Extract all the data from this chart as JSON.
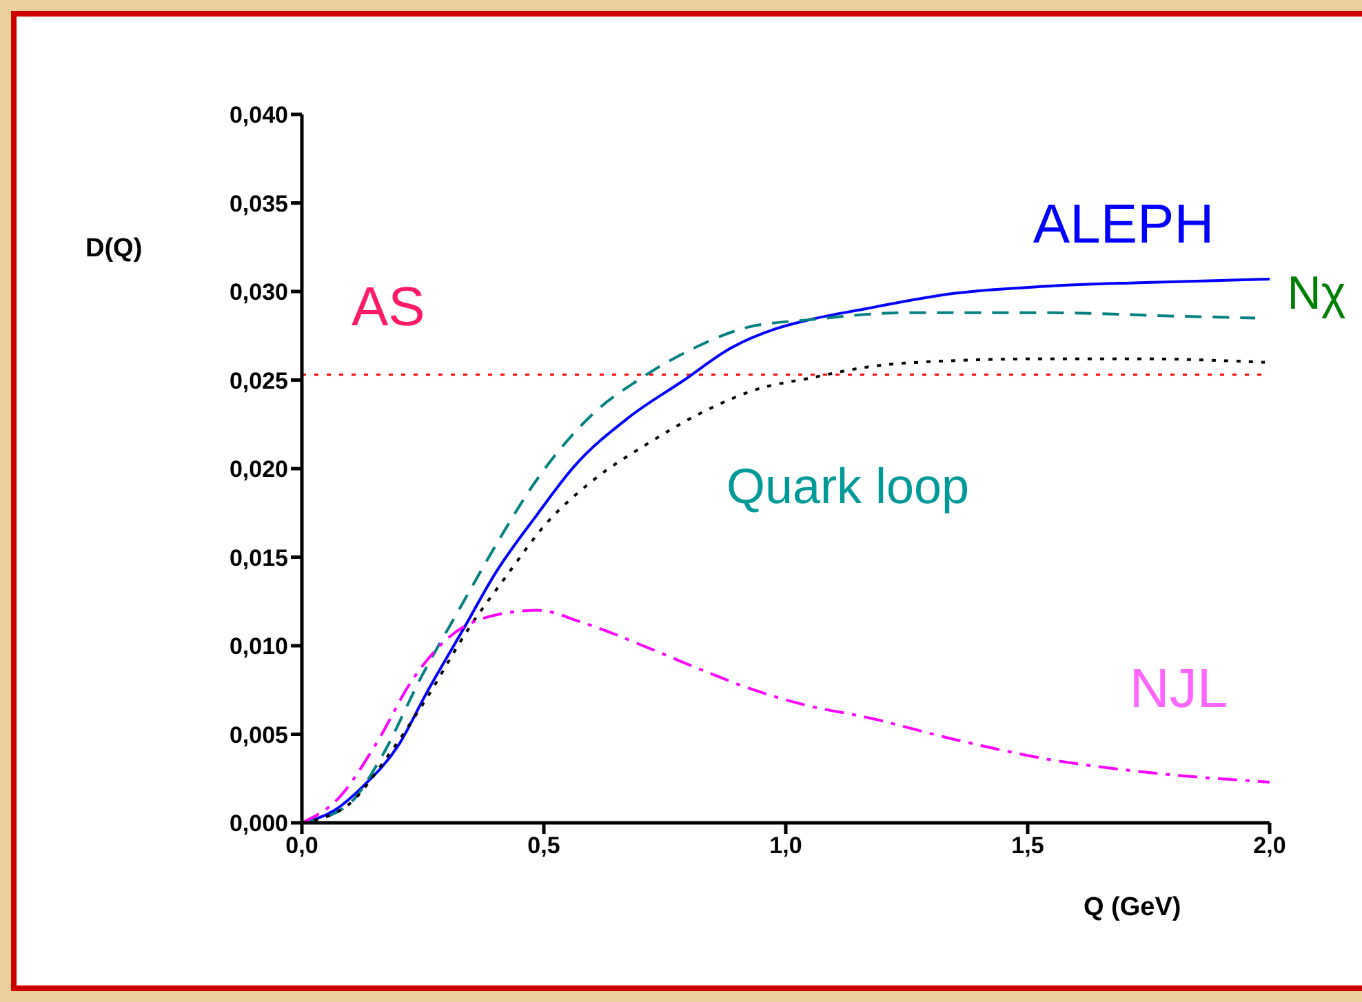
{
  "chart_data": {
    "type": "line",
    "xlabel": "Q (GeV)",
    "ylabel": "D(Q)",
    "xlim": [
      0,
      2
    ],
    "ylim": [
      0,
      0.04
    ],
    "xticks": [
      {
        "value": 0,
        "label": "0,0"
      },
      {
        "value": 0.5,
        "label": "0,5"
      },
      {
        "value": 1,
        "label": "1,0"
      },
      {
        "value": 1.5,
        "label": "1,5"
      },
      {
        "value": 2,
        "label": "2,0"
      }
    ],
    "yticks": [
      {
        "value": 0,
        "label": "0,000"
      },
      {
        "value": 0.005,
        "label": "0,005"
      },
      {
        "value": 0.01,
        "label": "0,010"
      },
      {
        "value": 0.015,
        "label": "0,015"
      },
      {
        "value": 0.02,
        "label": "0,020"
      },
      {
        "value": 0.025,
        "label": "0,025"
      },
      {
        "value": 0.03,
        "label": "0,030"
      },
      {
        "value": 0.035,
        "label": "0,035"
      },
      {
        "value": 0.04,
        "label": "0,040"
      }
    ],
    "series": [
      {
        "name": "ALEPH",
        "color": "#0000ff",
        "line_style": "solid",
        "x": [
          0,
          0.067,
          0.124,
          0.2,
          0.257,
          0.333,
          0.4,
          0.486,
          0.562,
          0.676,
          0.79,
          0.886,
          0.98,
          1.048,
          1.16,
          1.35,
          1.54,
          1.73,
          2.0
        ],
        "values": [
          0,
          0.0007,
          0.002,
          0.0044,
          0.0073,
          0.0109,
          0.0141,
          0.0174,
          0.0201,
          0.0229,
          0.025,
          0.0268,
          0.0279,
          0.0284,
          0.029,
          0.0299,
          0.0303,
          0.0305,
          0.0307
        ]
      },
      {
        "name": "Quark loop",
        "color": "#008080",
        "line_style": "dashed",
        "x": [
          0,
          0.095,
          0.162,
          0.248,
          0.324,
          0.41,
          0.476,
          0.543,
          0.61,
          0.695,
          0.81,
          0.924,
          1.048,
          1.25,
          1.54,
          1.82,
          1.97
        ],
        "values": [
          0,
          0.001,
          0.0036,
          0.0083,
          0.012,
          0.0161,
          0.019,
          0.0214,
          0.0233,
          0.025,
          0.0268,
          0.028,
          0.0284,
          0.0288,
          0.0288,
          0.0286,
          0.0285
        ]
      },
      {
        "color": "#000000",
        "line_style": "dotted",
        "x": [
          0,
          0.095,
          0.181,
          0.257,
          0.343,
          0.419,
          0.505,
          0.6,
          0.714,
          0.829,
          0.943,
          1.048,
          1.16,
          1.35,
          1.54,
          1.73,
          1.99
        ],
        "values": [
          0,
          0.001,
          0.0039,
          0.007,
          0.0109,
          0.0138,
          0.0169,
          0.0193,
          0.0214,
          0.0232,
          0.0245,
          0.0251,
          0.0257,
          0.0261,
          0.0262,
          0.0262,
          0.026
        ]
      },
      {
        "name": "NJL",
        "color": "#ff00ff",
        "line_style": "dashdot",
        "x": [
          0,
          0.076,
          0.152,
          0.229,
          0.305,
          0.381,
          0.486,
          0.581,
          0.714,
          0.829,
          0.924,
          1.048,
          1.16,
          1.35,
          1.54,
          1.73,
          2.0
        ],
        "values": [
          0,
          0.0014,
          0.0044,
          0.0081,
          0.0105,
          0.0116,
          0.012,
          0.0113,
          0.0099,
          0.0086,
          0.0076,
          0.0066,
          0.006,
          0.0047,
          0.0036,
          0.0029,
          0.0023
        ]
      }
    ],
    "ref_lines": [
      {
        "axis": "y",
        "value": 0.0253,
        "label": "AS",
        "color": "#ff0000",
        "line_style": "dotted"
      }
    ],
    "annotations": [
      "Nχ"
    ]
  }
}
